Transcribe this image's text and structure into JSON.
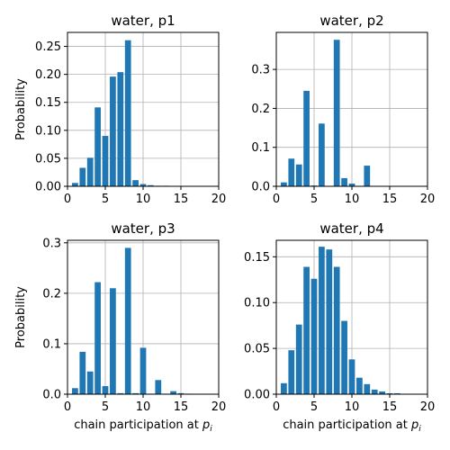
{
  "figure": {
    "background": "#ffffff"
  },
  "chart_data": [
    {
      "type": "bar",
      "title": "water, p1",
      "xlabel": "",
      "ylabel": "Probability",
      "xlim": [
        0,
        20
      ],
      "ylim": [
        0,
        0.275
      ],
      "xticks": [
        0,
        5,
        10,
        15,
        20
      ],
      "yticks": [
        0.0,
        0.05,
        0.1,
        0.15,
        0.2,
        0.25
      ],
      "ytick_labels": [
        "0.00",
        "0.05",
        "0.10",
        "0.15",
        "0.20",
        "0.25"
      ],
      "grid": true,
      "bar_color": "#1f77b4",
      "x": [
        1,
        2,
        3,
        4,
        5,
        6,
        7,
        8,
        9,
        10,
        11,
        12,
        13
      ],
      "values": [
        0.006,
        0.033,
        0.051,
        0.141,
        0.09,
        0.196,
        0.204,
        0.261,
        0.011,
        0.004,
        0.002,
        0.001,
        0.001
      ]
    },
    {
      "type": "bar",
      "title": "water, p2",
      "xlabel": "",
      "ylabel": "",
      "xlim": [
        0,
        20
      ],
      "ylim": [
        0,
        0.395
      ],
      "xticks": [
        0,
        5,
        10,
        15,
        20
      ],
      "yticks": [
        0.0,
        0.1,
        0.2,
        0.3
      ],
      "ytick_labels": [
        "0.0",
        "0.1",
        "0.2",
        "0.3"
      ],
      "grid": true,
      "bar_color": "#1f77b4",
      "x": [
        1,
        2,
        3,
        4,
        5,
        6,
        7,
        8,
        9,
        10,
        11,
        12
      ],
      "values": [
        0.01,
        0.071,
        0.056,
        0.245,
        0.002,
        0.161,
        0.001,
        0.376,
        0.021,
        0.007,
        0.001,
        0.053
      ]
    },
    {
      "type": "bar",
      "title": "water, p3",
      "xlabel": "chain participation at p_i",
      "ylabel": "Probability",
      "xlim": [
        0,
        20
      ],
      "ylim": [
        0,
        0.305
      ],
      "xticks": [
        0,
        5,
        10,
        15,
        20
      ],
      "yticks": [
        0.0,
        0.1,
        0.2,
        0.3
      ],
      "ytick_labels": [
        "0.0",
        "0.1",
        "0.2",
        "0.3"
      ],
      "grid": true,
      "bar_color": "#1f77b4",
      "x": [
        1,
        2,
        3,
        4,
        5,
        6,
        7,
        8,
        9,
        10,
        11,
        12,
        13,
        14,
        15,
        16
      ],
      "values": [
        0.012,
        0.084,
        0.045,
        0.222,
        0.016,
        0.21,
        0.002,
        0.29,
        0.002,
        0.092,
        0.001,
        0.028,
        0.001,
        0.006,
        0.002,
        0.001
      ]
    },
    {
      "type": "bar",
      "title": "water, p4",
      "xlabel": "chain participation at p_i",
      "ylabel": "",
      "xlim": [
        0,
        20
      ],
      "ylim": [
        0,
        0.168
      ],
      "xticks": [
        0,
        5,
        10,
        15,
        20
      ],
      "yticks": [
        0.0,
        0.05,
        0.1,
        0.15
      ],
      "ytick_labels": [
        "0.00",
        "0.05",
        "0.10",
        "0.15"
      ],
      "grid": true,
      "bar_color": "#1f77b4",
      "x": [
        1,
        2,
        3,
        4,
        5,
        6,
        7,
        8,
        9,
        10,
        11,
        12,
        13,
        14,
        15,
        16
      ],
      "values": [
        0.012,
        0.048,
        0.076,
        0.139,
        0.126,
        0.161,
        0.158,
        0.139,
        0.08,
        0.038,
        0.018,
        0.011,
        0.005,
        0.003,
        0.001,
        0.001
      ]
    }
  ]
}
